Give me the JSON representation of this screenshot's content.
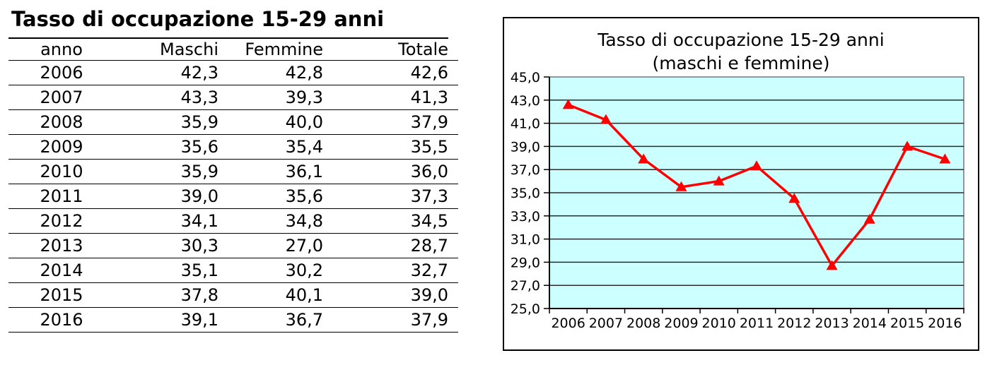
{
  "table": {
    "title": "Tasso di occupazione 15-29 anni",
    "columns": [
      "anno",
      "Maschi",
      "Femmine",
      "Totale"
    ],
    "rows": [
      [
        "2006",
        "42,3",
        "42,8",
        "42,6"
      ],
      [
        "2007",
        "43,3",
        "39,3",
        "41,3"
      ],
      [
        "2008",
        "35,9",
        "40,0",
        "37,9"
      ],
      [
        "2009",
        "35,6",
        "35,4",
        "35,5"
      ],
      [
        "2010",
        "35,9",
        "36,1",
        "36,0"
      ],
      [
        "2011",
        "39,0",
        "35,6",
        "37,3"
      ],
      [
        "2012",
        "34,1",
        "34,8",
        "34,5"
      ],
      [
        "2013",
        "30,3",
        "27,0",
        "28,7"
      ],
      [
        "2014",
        "35,1",
        "30,2",
        "32,7"
      ],
      [
        "2015",
        "37,8",
        "40,1",
        "39,0"
      ],
      [
        "2016",
        "39,1",
        "36,7",
        "37,9"
      ]
    ]
  },
  "chart": {
    "title_line1": "Tasso di occupazione 15-29 anni",
    "title_line2": "(maschi e femmine)"
  },
  "chart_data": {
    "type": "line",
    "title": "Tasso di occupazione 15-29 anni (maschi e femmine)",
    "categories": [
      "2006",
      "2007",
      "2008",
      "2009",
      "2010",
      "2011",
      "2012",
      "2013",
      "2014",
      "2015",
      "2016"
    ],
    "series": [
      {
        "name": "Totale",
        "values": [
          42.6,
          41.3,
          37.9,
          35.5,
          36.0,
          37.3,
          34.5,
          28.7,
          32.7,
          39.0,
          37.9
        ]
      }
    ],
    "ylim": [
      25.0,
      45.0
    ],
    "ytick_step": 2.0,
    "ytick_labels": [
      "45,0",
      "43,0",
      "41,0",
      "39,0",
      "37,0",
      "35,0",
      "33,0",
      "31,0",
      "29,0",
      "27,0",
      "25,0"
    ],
    "grid": true,
    "legend": "none",
    "marker": "triangle-up",
    "colors": {
      "line": "#ff0000",
      "marker": "#ff0000",
      "plot_bg": "#ccffff",
      "plot_border": "#969696",
      "gridline": "#2b2b2b",
      "axis": "#000000",
      "text": "#000000"
    }
  }
}
